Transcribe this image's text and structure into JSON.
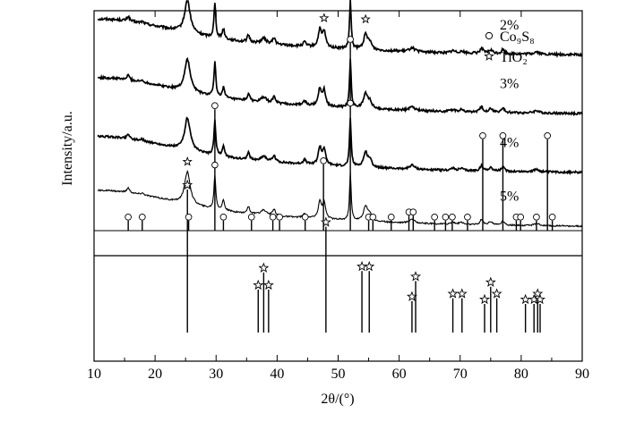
{
  "chart_data": {
    "type": "line",
    "xlabel": "2θ/(°)",
    "ylabel": "Intensity/a.u.",
    "xlim": [
      10,
      90
    ],
    "x_ticks": [
      10,
      20,
      30,
      40,
      50,
      60,
      70,
      80,
      90
    ],
    "grid": false,
    "legend": {
      "placement": "top-right",
      "entries": [
        {
          "marker": "circle",
          "label": "Co₉S₈"
        },
        {
          "marker": "star",
          "label": "TiO₂"
        }
      ]
    },
    "series": [
      {
        "name": "2%",
        "baseline": 0.84,
        "noise": 0.01
      },
      {
        "name": "3%",
        "baseline": 0.6,
        "noise": 0.009
      },
      {
        "name": "4%",
        "baseline": 0.36,
        "noise": 0.008
      },
      {
        "name": "5%",
        "baseline": 0.14,
        "noise": 0.006
      }
    ],
    "peaks": [
      {
        "x": 15.6,
        "h": 0.14,
        "w": 0.25
      },
      {
        "x": 17.9,
        "h": 0.05,
        "w": 0.3
      },
      {
        "x": 25.3,
        "h": 0.95,
        "w": 0.55
      },
      {
        "x": 29.8,
        "h": 1.0,
        "w": 0.18
      },
      {
        "x": 31.2,
        "h": 0.3,
        "w": 0.22
      },
      {
        "x": 35.3,
        "h": 0.2,
        "w": 0.25
      },
      {
        "x": 37.8,
        "h": 0.15,
        "w": 0.5
      },
      {
        "x": 39.5,
        "h": 0.18,
        "w": 0.28
      },
      {
        "x": 44.5,
        "h": 0.12,
        "w": 0.3
      },
      {
        "x": 47.0,
        "h": 0.5,
        "w": 0.3
      },
      {
        "x": 47.7,
        "h": 0.45,
        "w": 0.3
      },
      {
        "x": 52.0,
        "h": 1.4,
        "w": 0.16
      },
      {
        "x": 54.5,
        "h": 0.42,
        "w": 0.4
      },
      {
        "x": 55.2,
        "h": 0.2,
        "w": 0.35
      },
      {
        "x": 62.1,
        "h": 0.12,
        "w": 0.5
      },
      {
        "x": 68.8,
        "h": 0.06,
        "w": 0.4
      },
      {
        "x": 70.2,
        "h": 0.06,
        "w": 0.4
      },
      {
        "x": 73.5,
        "h": 0.15,
        "w": 0.3
      },
      {
        "x": 75.0,
        "h": 0.1,
        "w": 0.4
      },
      {
        "x": 77.0,
        "h": 0.12,
        "w": 0.3
      },
      {
        "x": 82.5,
        "h": 0.07,
        "w": 0.5
      }
    ],
    "reference_co9s8": {
      "marker": "circle",
      "lines": [
        {
          "x": 15.6,
          "h": 0.08
        },
        {
          "x": 17.9,
          "h": 0.08
        },
        {
          "x": 25.5,
          "h": 0.08
        },
        {
          "x": 29.8,
          "h": 0.97
        },
        {
          "x": 31.2,
          "h": 0.08
        },
        {
          "x": 35.8,
          "h": 0.08
        },
        {
          "x": 39.3,
          "h": 0.08
        },
        {
          "x": 40.4,
          "h": 0.08
        },
        {
          "x": 44.6,
          "h": 0.08
        },
        {
          "x": 47.6,
          "h": 0.53
        },
        {
          "x": 52.0,
          "h": 1.5
        },
        {
          "x": 55.0,
          "h": 0.08
        },
        {
          "x": 55.7,
          "h": 0.08
        },
        {
          "x": 58.7,
          "h": 0.08
        },
        {
          "x": 61.6,
          "h": 0.12
        },
        {
          "x": 62.3,
          "h": 0.12
        },
        {
          "x": 65.8,
          "h": 0.08
        },
        {
          "x": 67.6,
          "h": 0.08
        },
        {
          "x": 68.7,
          "h": 0.08
        },
        {
          "x": 71.2,
          "h": 0.08
        },
        {
          "x": 73.7,
          "h": 0.73
        },
        {
          "x": 77.0,
          "h": 0.73
        },
        {
          "x": 79.2,
          "h": 0.08
        },
        {
          "x": 79.9,
          "h": 0.08
        },
        {
          "x": 82.5,
          "h": 0.08
        },
        {
          "x": 84.3,
          "h": 0.73
        },
        {
          "x": 85.1,
          "h": 0.08
        }
      ]
    },
    "reference_tio2": {
      "marker": "star",
      "lines": [
        {
          "x": 25.3,
          "h": 1.0
        },
        {
          "x": 36.9,
          "h": 0.3
        },
        {
          "x": 37.8,
          "h": 0.42
        },
        {
          "x": 38.6,
          "h": 0.3
        },
        {
          "x": 48.0,
          "h": 0.74
        },
        {
          "x": 53.9,
          "h": 0.43
        },
        {
          "x": 55.1,
          "h": 0.43
        },
        {
          "x": 62.1,
          "h": 0.22
        },
        {
          "x": 62.7,
          "h": 0.36
        },
        {
          "x": 68.8,
          "h": 0.24
        },
        {
          "x": 70.3,
          "h": 0.24
        },
        {
          "x": 74.0,
          "h": 0.2
        },
        {
          "x": 75.0,
          "h": 0.32
        },
        {
          "x": 76.0,
          "h": 0.24
        },
        {
          "x": 80.7,
          "h": 0.2
        },
        {
          "x": 82.1,
          "h": 0.2
        },
        {
          "x": 82.7,
          "h": 0.24
        },
        {
          "x": 83.1,
          "h": 0.2
        }
      ]
    },
    "annotations": [
      {
        "x": 25.3,
        "marker": "star",
        "on": "2%"
      },
      {
        "x": 47.7,
        "marker": "star",
        "on": "2%"
      },
      {
        "x": 54.5,
        "marker": "star",
        "on": "2%"
      },
      {
        "x": 52.0,
        "marker": "circle",
        "on": "4%"
      },
      {
        "x": 29.8,
        "marker": "circle",
        "on": "5%"
      },
      {
        "x": 25.3,
        "marker": "star",
        "on": "5%"
      }
    ]
  }
}
